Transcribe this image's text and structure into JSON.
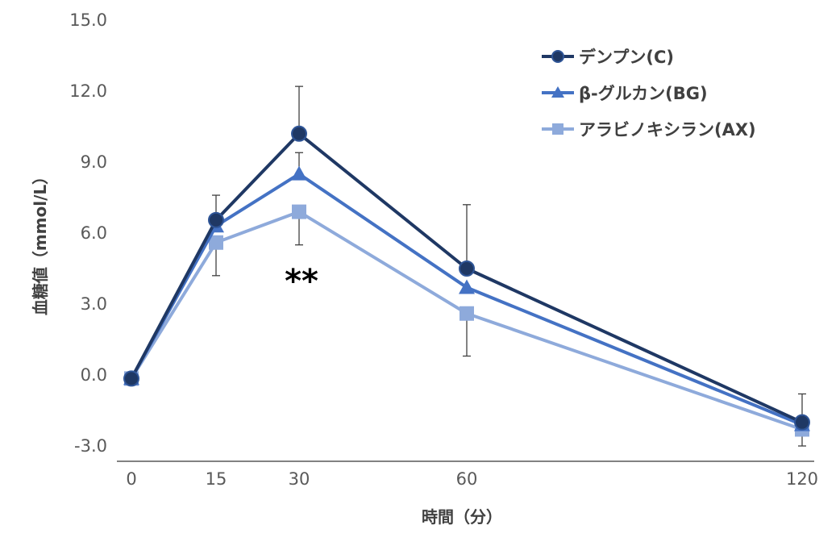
{
  "chart_data": {
    "type": "line",
    "x": [
      0,
      15,
      30,
      60,
      120
    ],
    "xticks": [
      "0",
      "15",
      "30",
      "60",
      "120"
    ],
    "yticks": [
      "15.0",
      "12.0",
      "9.0",
      "6.0",
      "3.0",
      "0.0",
      "-3.0"
    ],
    "ylim": [
      -3.0,
      15.0
    ],
    "xlabel": "時間（分）",
    "ylabel": "血糖値（mmol/L）",
    "grid": false,
    "legend_position": "top-right",
    "annotations": [
      {
        "text": "**",
        "x": 30
      }
    ],
    "series": [
      {
        "name": "デンプン(C)",
        "marker": "circle",
        "color": "#1f3864",
        "values": [
          -0.15,
          6.55,
          10.2,
          4.5,
          -2.0
        ],
        "error_upper": [
          null,
          7.6,
          12.2,
          7.2,
          -0.8
        ],
        "error_lower": [
          null,
          null,
          null,
          null,
          null
        ]
      },
      {
        "name": "β-グルカン(BG)",
        "marker": "triangle",
        "color": "#4472c4",
        "values": [
          -0.15,
          6.3,
          8.5,
          3.7,
          -2.1
        ],
        "error_upper": [
          null,
          null,
          9.4,
          null,
          null
        ],
        "error_lower": [
          null,
          null,
          null,
          null,
          null
        ]
      },
      {
        "name": "アラビノキシラン(AX)",
        "marker": "square",
        "color": "#8eaadb",
        "values": [
          -0.15,
          5.6,
          6.9,
          2.6,
          -2.3
        ],
        "error_upper": [
          null,
          null,
          null,
          null,
          null
        ],
        "error_lower": [
          null,
          4.2,
          5.5,
          0.8,
          -3.0
        ]
      }
    ]
  }
}
